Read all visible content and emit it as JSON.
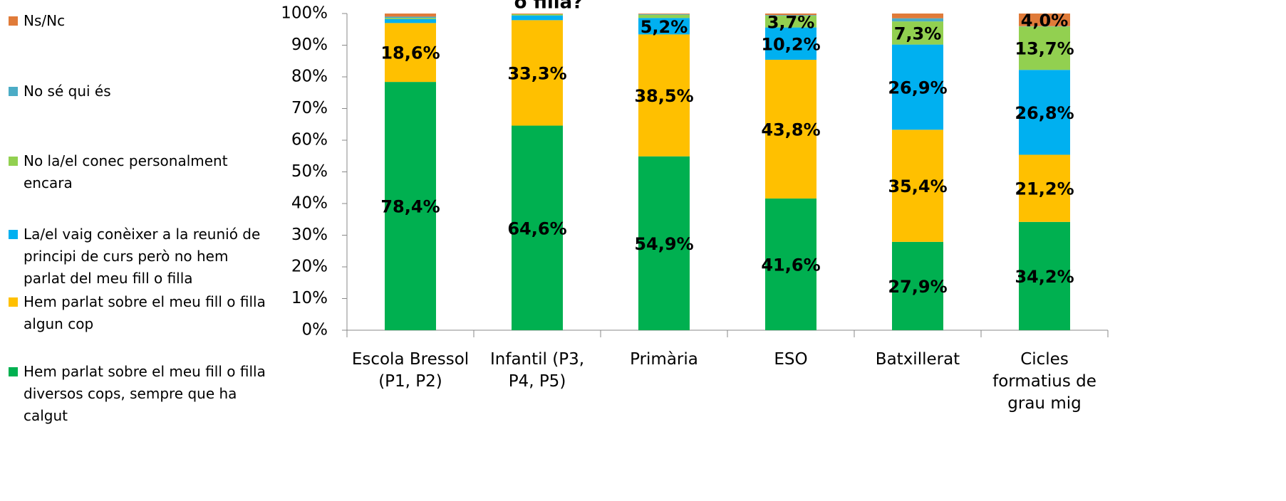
{
  "chart_data": {
    "type": "stacked_bar",
    "title": "o filla?",
    "categories": [
      "Escola Bressol (P1, P2)",
      "Infantil (P3, P4, P5)",
      "Primària",
      "ESO",
      "Batxillerat",
      "Cicles formatius de grau mig"
    ],
    "series": [
      {
        "name": "Hem parlat sobre el meu fill o filla diversos cops, sempre que ha calgut",
        "color": "#00b050",
        "values": [
          78.4,
          64.6,
          54.9,
          41.6,
          27.9,
          34.2
        ],
        "value_labels": [
          "78,4%",
          "64,6%",
          "54,9%",
          "41,6%",
          "27,9%",
          "34,2%"
        ]
      },
      {
        "name": "Hem parlat sobre el meu fill o filla algun cop",
        "color": "#ffc000",
        "values": [
          18.6,
          33.3,
          38.5,
          43.8,
          35.4,
          21.2
        ],
        "value_labels": [
          "18,6%",
          "33,3%",
          "38,5%",
          "43,8%",
          "35,4%",
          "21,2%"
        ]
      },
      {
        "name": "La/el vaig conèixer a la reunió de principi de curs però no hem parlat del meu fill o filla",
        "color": "#00b0f0",
        "values": [
          1.2,
          1.5,
          5.2,
          10.2,
          26.9,
          26.8
        ],
        "value_labels": [
          null,
          null,
          "5,2%",
          "10,2%",
          "26,9%",
          "26,8%"
        ]
      },
      {
        "name": "No la/el conec personalment encara",
        "color": "#92d050",
        "values": [
          0.4,
          0.4,
          1.0,
          3.7,
          7.3,
          13.7
        ],
        "value_labels": [
          null,
          null,
          null,
          "3,7%",
          "7,3%",
          "13,7%"
        ]
      },
      {
        "name": "No sé qui és",
        "color": "#4bacc6",
        "values": [
          0.4,
          0.0,
          0.2,
          0.2,
          1.0,
          0.1
        ],
        "value_labels": [
          null,
          null,
          null,
          null,
          null,
          null
        ]
      },
      {
        "name": "Ns/Nc",
        "color": "#e07b39",
        "values": [
          1.0,
          0.2,
          0.2,
          0.5,
          1.5,
          4.0
        ],
        "value_labels": [
          null,
          null,
          null,
          null,
          null,
          "4,0%"
        ]
      }
    ],
    "ylim": [
      0,
      100
    ],
    "yticks": [
      {
        "value": 0,
        "label": "0%"
      },
      {
        "value": 10,
        "label": "10%"
      },
      {
        "value": 20,
        "label": "20%"
      },
      {
        "value": 30,
        "label": "30%"
      },
      {
        "value": 40,
        "label": "40%"
      },
      {
        "value": 50,
        "label": "50%"
      },
      {
        "value": 60,
        "label": "60%"
      },
      {
        "value": 70,
        "label": "70%"
      },
      {
        "value": 80,
        "label": "80%"
      },
      {
        "value": 90,
        "label": "90%"
      },
      {
        "value": 100,
        "label": "100%"
      }
    ],
    "legend": "left"
  }
}
